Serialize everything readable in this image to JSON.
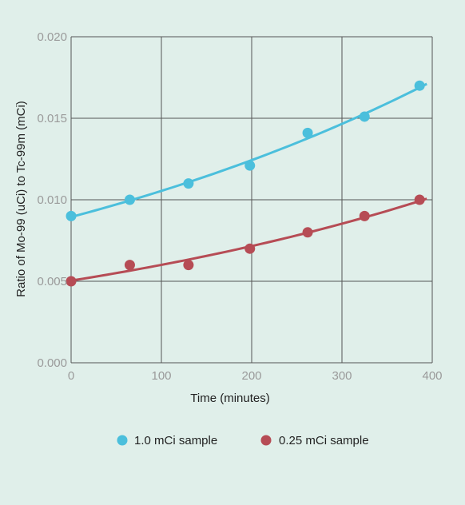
{
  "chart_data": {
    "type": "scatter",
    "xlabel": "Time (minutes)",
    "ylabel": "Ratio of Mo-99 (uCi) to Tc-99m (mCi)",
    "xlim": [
      0,
      400
    ],
    "ylim": [
      0.0,
      0.02
    ],
    "xticks": [
      0,
      100,
      200,
      300,
      400
    ],
    "xtick_labels": [
      "0",
      "100",
      "200",
      "300",
      "400"
    ],
    "yticks": [
      0.0,
      0.005,
      0.01,
      0.015,
      0.02
    ],
    "ytick_labels": [
      "0.000",
      "0.005",
      "0.010",
      "0.015",
      "0.020"
    ],
    "grid": true,
    "legend_position": "bottom",
    "series": [
      {
        "name": "1.0 mCi sample",
        "color": "#4bbfdc",
        "x": [
          0,
          65,
          130,
          198,
          262,
          325,
          386
        ],
        "y": [
          0.009,
          0.01,
          0.011,
          0.0121,
          0.0141,
          0.0151,
          0.017
        ],
        "trend": "exponential"
      },
      {
        "name": "0.25 mCi sample",
        "color": "#b64c55",
        "x": [
          0,
          65,
          130,
          198,
          262,
          325,
          386
        ],
        "y": [
          0.005,
          0.006,
          0.006,
          0.007,
          0.008,
          0.009,
          0.01
        ],
        "trend": "exponential"
      }
    ]
  }
}
